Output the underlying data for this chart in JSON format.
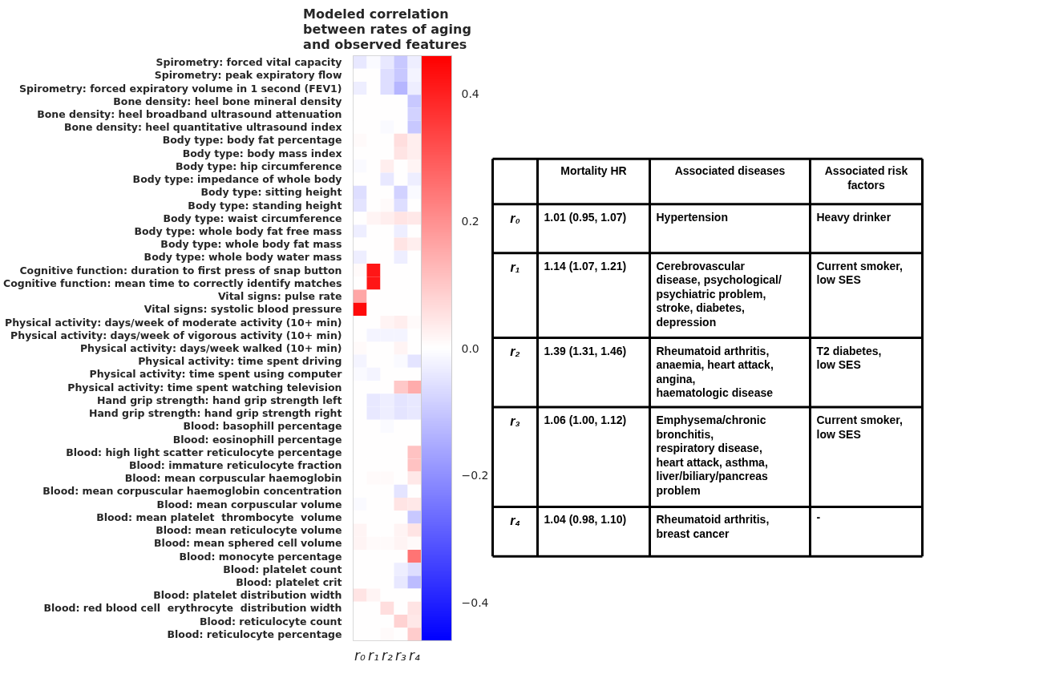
{
  "chart_data": [
    {
      "type": "heatmap",
      "title": "Modeled correlation\nbetween rates of aging\nand observed features",
      "categories": [
        "r₀",
        "r₁",
        "r₂",
        "r₃",
        "r₄"
      ],
      "y_categories": [
        "Spirometry: forced vital capacity",
        "Spirometry: peak expiratory flow",
        "Spirometry: forced expiratory volume in 1 second (FEV1)",
        "Bone density: heel bone mineral density",
        "Bone density: heel broadband ultrasound attenuation",
        "Bone density: heel quantitative ultrasound index",
        "Body type: body fat percentage",
        "Body type: body mass index",
        "Body type: hip circumference",
        "Body type: impedance of whole body",
        "Body type: sitting height",
        "Body type: standing height",
        "Body type: waist circumference",
        "Body type: whole body fat free mass",
        "Body type: whole body fat mass",
        "Body type: whole body water mass",
        "Cognitive function: duration to first press of snap button",
        "Cognitive function: mean time to correctly identify matches",
        "Vital signs: pulse rate",
        "Vital signs: systolic blood pressure",
        "Physical activity: days/week of moderate activity (10+ min)",
        "Physical activity: days/week of vigorous activity (10+ min)",
        "Physical activity: days/week walked (10+ min)",
        "Physical activity: time spent driving",
        "Physical activity: time spent using computer",
        "Physical activity: time spent watching television",
        "Hand grip strength: hand grip strength left",
        "Hand grip strength: hand grip strength right",
        "Blood: basophill percentage",
        "Blood: eosinophill percentage",
        "Blood: high light scatter reticulocyte percentage",
        "Blood: immature reticulocyte fraction",
        "Blood: mean corpuscular haemoglobin",
        "Blood: mean corpuscular haemoglobin concentration",
        "Blood: mean corpuscular volume",
        "Blood: mean platelet  thrombocyte  volume",
        "Blood: mean reticulocyte volume",
        "Blood: mean sphered cell volume",
        "Blood: monocyte percentage",
        "Blood: platelet count",
        "Blood: platelet crit",
        "Blood: platelet distribution width",
        "Blood: red blood cell  erythrocyte  distribution width",
        "Blood: reticulocyte count",
        "Blood: reticulocyte percentage"
      ],
      "cells": [
        [
          -0.04,
          -0.01,
          -0.04,
          -0.1,
          -0.03
        ],
        [
          0,
          0,
          -0.06,
          -0.1,
          -0.02
        ],
        [
          -0.03,
          0,
          -0.06,
          -0.13,
          -0.03
        ],
        [
          0,
          0,
          0,
          0,
          -0.1
        ],
        [
          0,
          0,
          0,
          0,
          -0.08
        ],
        [
          0,
          0,
          -0.01,
          0,
          -0.1
        ],
        [
          0.01,
          0,
          0,
          0.06,
          0.03
        ],
        [
          0,
          0,
          0,
          0.05,
          0.03
        ],
        [
          -0.01,
          0,
          0.03,
          0,
          0.02
        ],
        [
          0,
          0,
          -0.04,
          0,
          -0.03
        ],
        [
          -0.06,
          0,
          0,
          -0.08,
          -0.01
        ],
        [
          -0.05,
          0,
          0.01,
          -0.06,
          0
        ],
        [
          0,
          0.02,
          0.03,
          0.05,
          0.04
        ],
        [
          -0.03,
          0,
          0,
          -0.03,
          0
        ],
        [
          0,
          0,
          0,
          0.05,
          0.03
        ],
        [
          -0.03,
          0,
          0,
          -0.03,
          0
        ],
        [
          0.01,
          0.42,
          0,
          0,
          0
        ],
        [
          0,
          0.42,
          0,
          0,
          0
        ],
        [
          0.16,
          0,
          0,
          0,
          0
        ],
        [
          0.44,
          0,
          0,
          0,
          0
        ],
        [
          0,
          0,
          0.02,
          0.03,
          0.01
        ],
        [
          0,
          -0.02,
          -0.02,
          -0.02,
          0
        ],
        [
          0.01,
          0,
          0,
          0.02,
          0
        ],
        [
          -0.02,
          0,
          0,
          -0.01,
          -0.05
        ],
        [
          -0.01,
          -0.02,
          0,
          0,
          0
        ],
        [
          0,
          0,
          0,
          0.1,
          0.15
        ],
        [
          0,
          -0.04,
          -0.03,
          -0.05,
          -0.04
        ],
        [
          0,
          -0.04,
          -0.03,
          -0.05,
          -0.04
        ],
        [
          0,
          0,
          -0.01,
          0,
          0
        ],
        [
          0,
          0,
          0,
          0,
          0
        ],
        [
          0,
          0,
          0,
          0,
          0.11
        ],
        [
          0,
          0,
          0,
          0,
          0.11
        ],
        [
          0,
          0.01,
          0.01,
          0,
          0.04
        ],
        [
          0,
          0,
          0,
          -0.05,
          0
        ],
        [
          -0.01,
          0,
          0,
          0.05,
          0.04
        ],
        [
          0,
          0,
          0,
          0,
          -0.1
        ],
        [
          0.02,
          0,
          0,
          0.02,
          0.05
        ],
        [
          0.02,
          0.01,
          0.01,
          0.02,
          0.01
        ],
        [
          0,
          0,
          0,
          0,
          0.25
        ],
        [
          0,
          0,
          0,
          -0.03,
          -0.06
        ],
        [
          0,
          0,
          0,
          -0.04,
          -0.12
        ],
        [
          0.05,
          0.02,
          0,
          0,
          0
        ],
        [
          0,
          0,
          0.06,
          0,
          0.05
        ],
        [
          0,
          0,
          0,
          0.08,
          0.04
        ],
        [
          0,
          0,
          0.01,
          0,
          0.09
        ]
      ],
      "clim": [
        -0.46,
        0.46
      ],
      "cticks": [
        {
          "value": -0.4,
          "label": "−0.4"
        },
        {
          "value": -0.2,
          "label": "−0.2"
        },
        {
          "value": 0.0,
          "label": "0.0"
        },
        {
          "value": 0.2,
          "label": "0.2"
        },
        {
          "value": 0.4,
          "label": "0.4"
        }
      ]
    },
    {
      "type": "other",
      "categories": [
        null,
        "Mortality HR",
        "Associated diseases",
        "Associated risk\nfactors"
      ],
      "y_categories": [
        "r₀",
        "r₁",
        "r₂",
        "r₃",
        "r₄"
      ],
      "cell_labels": [
        [
          "1.01 (0.95, 1.07)",
          "Hypertension",
          "Heavy drinker"
        ],
        [
          "1.14 (1.07, 1.21)",
          "Cerebrovascular\ndisease, psychological/\npsychiatric problem,\nstroke, diabetes,\ndepression",
          "Current smoker,\nlow SES"
        ],
        [
          "1.39 (1.31, 1.46)",
          "Rheumatoid arthritis,\nanaemia, heart attack,\nangina,\nhaematologic disease",
          "T2 diabetes,\nlow SES"
        ],
        [
          "1.06 (1.00, 1.12)",
          "Emphysema/chronic\nbronchitis,\nrespiratory disease,\nheart attack, asthma,\nliver/biliary/pancreas\nproblem",
          "Current smoker,\nlow SES"
        ],
        [
          "1.04 (0.98, 1.10)",
          "Rheumatoid arthritis,\nbreast cancer",
          "-"
        ]
      ]
    }
  ]
}
